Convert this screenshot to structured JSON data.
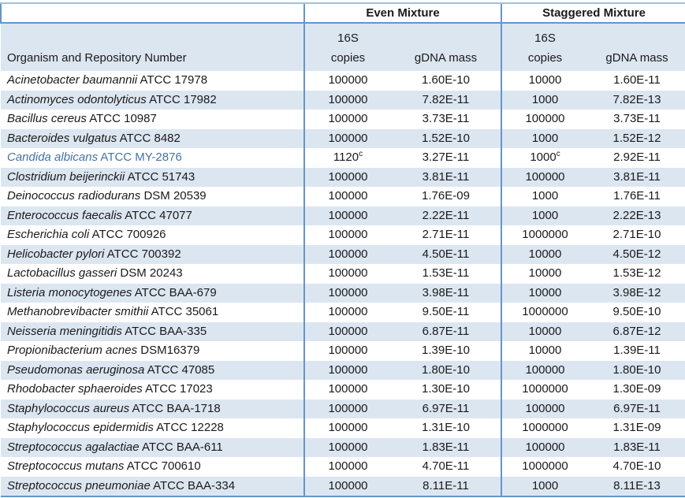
{
  "table": {
    "org_header": "Organism and Repository Number",
    "groups": [
      {
        "label": "Even Mixture"
      },
      {
        "label": "Staggered Mixture"
      }
    ],
    "subheaders": {
      "copies": "16S\ncopies",
      "gdna": "gDNA mass"
    },
    "footnote_marker": "c",
    "colors": {
      "stripe": "#dce6f1",
      "border": "#6496c8",
      "border_top": "#a3c0dd",
      "highlight_text": "#4473a9"
    },
    "rows": [
      {
        "organism": "Acinetobacter baumannii",
        "accession": "ATCC 17978",
        "even_copies": "100000",
        "even_copies_sup": "",
        "even_gdna": "1.60E-10",
        "stag_copies": "10000",
        "stag_copies_sup": "",
        "stag_gdna": "1.60E-11",
        "highlight": false
      },
      {
        "organism": "Actinomyces odontolyticus",
        "accession": "ATCC 17982",
        "even_copies": "100000",
        "even_copies_sup": "",
        "even_gdna": "7.82E-11",
        "stag_copies": "1000",
        "stag_copies_sup": "",
        "stag_gdna": "7.82E-13",
        "highlight": false
      },
      {
        "organism": "Bacillus cereus",
        "accession": "ATCC 10987",
        "even_copies": "100000",
        "even_copies_sup": "",
        "even_gdna": "3.73E-11",
        "stag_copies": "100000",
        "stag_copies_sup": "",
        "stag_gdna": "3.73E-11",
        "highlight": false
      },
      {
        "organism": "Bacteroides vulgatus",
        "accession": "ATCC 8482",
        "even_copies": "100000",
        "even_copies_sup": "",
        "even_gdna": "1.52E-10",
        "stag_copies": "1000",
        "stag_copies_sup": "",
        "stag_gdna": "1.52E-12",
        "highlight": false
      },
      {
        "organism": "Candida albicans",
        "accession": "ATCC MY-2876",
        "even_copies": "1120",
        "even_copies_sup": "c",
        "even_gdna": "3.27E-11",
        "stag_copies": "1000",
        "stag_copies_sup": "c",
        "stag_gdna": "2.92E-11",
        "highlight": true
      },
      {
        "organism": "Clostridium beijerinckii",
        "accession": "ATCC 51743",
        "even_copies": "100000",
        "even_copies_sup": "",
        "even_gdna": "3.81E-11",
        "stag_copies": "100000",
        "stag_copies_sup": "",
        "stag_gdna": "3.81E-11",
        "highlight": false
      },
      {
        "organism": "Deinococcus radiodurans",
        "accession": "DSM 20539",
        "even_copies": "100000",
        "even_copies_sup": "",
        "even_gdna": "1.76E-09",
        "stag_copies": "1000",
        "stag_copies_sup": "",
        "stag_gdna": "1.76E-11",
        "highlight": false
      },
      {
        "organism": "Enterococcus faecalis",
        "accession": "ATCC 47077",
        "even_copies": "100000",
        "even_copies_sup": "",
        "even_gdna": "2.22E-11",
        "stag_copies": "1000",
        "stag_copies_sup": "",
        "stag_gdna": "2.22E-13",
        "highlight": false
      },
      {
        "organism": "Escherichia coli",
        "accession": "ATCC 700926",
        "even_copies": "100000",
        "even_copies_sup": "",
        "even_gdna": "2.71E-11",
        "stag_copies": "1000000",
        "stag_copies_sup": "",
        "stag_gdna": "2.71E-10",
        "highlight": false
      },
      {
        "organism": "Helicobacter pylori",
        "accession": "ATCC 700392",
        "even_copies": "100000",
        "even_copies_sup": "",
        "even_gdna": "4.50E-11",
        "stag_copies": "10000",
        "stag_copies_sup": "",
        "stag_gdna": "4.50E-12",
        "highlight": false
      },
      {
        "organism": "Lactobacillus gasseri",
        "accession": "DSM 20243",
        "even_copies": "100000",
        "even_copies_sup": "",
        "even_gdna": "1.53E-11",
        "stag_copies": "10000",
        "stag_copies_sup": "",
        "stag_gdna": "1.53E-12",
        "highlight": false
      },
      {
        "organism": "Listeria monocytogenes",
        "accession": "ATCC BAA-679",
        "even_copies": "100000",
        "even_copies_sup": "",
        "even_gdna": "3.98E-11",
        "stag_copies": "10000",
        "stag_copies_sup": "",
        "stag_gdna": "3.98E-12",
        "highlight": false
      },
      {
        "organism": "Methanobrevibacter smithii",
        "accession": "ATCC 35061",
        "even_copies": "100000",
        "even_copies_sup": "",
        "even_gdna": "9.50E-11",
        "stag_copies": "1000000",
        "stag_copies_sup": "",
        "stag_gdna": "9.50E-10",
        "highlight": false
      },
      {
        "organism": "Neisseria meningitidis",
        "accession": "ATCC BAA-335",
        "even_copies": "100000",
        "even_copies_sup": "",
        "even_gdna": "6.87E-11",
        "stag_copies": "10000",
        "stag_copies_sup": "",
        "stag_gdna": "6.87E-12",
        "highlight": false
      },
      {
        "organism": "Propionibacterium acnes",
        "accession": "DSM16379",
        "even_copies": "100000",
        "even_copies_sup": "",
        "even_gdna": "1.39E-10",
        "stag_copies": "10000",
        "stag_copies_sup": "",
        "stag_gdna": "1.39E-11",
        "highlight": false
      },
      {
        "organism": "Pseudomonas aeruginosa",
        "accession": "ATCC 47085",
        "even_copies": "100000",
        "even_copies_sup": "",
        "even_gdna": "1.80E-10",
        "stag_copies": "100000",
        "stag_copies_sup": "",
        "stag_gdna": "1.80E-10",
        "highlight": false
      },
      {
        "organism": "Rhodobacter sphaeroides",
        "accession": "ATCC 17023",
        "even_copies": "100000",
        "even_copies_sup": "",
        "even_gdna": "1.30E-10",
        "stag_copies": "1000000",
        "stag_copies_sup": "",
        "stag_gdna": "1.30E-09",
        "highlight": false
      },
      {
        "organism": "Staphylococcus aureus",
        "accession": "ATCC BAA-1718",
        "even_copies": "100000",
        "even_copies_sup": "",
        "even_gdna": "6.97E-11",
        "stag_copies": "100000",
        "stag_copies_sup": "",
        "stag_gdna": "6.97E-11",
        "highlight": false
      },
      {
        "organism": "Staphylococcus epidermidis",
        "accession": "ATCC 12228",
        "even_copies": "100000",
        "even_copies_sup": "",
        "even_gdna": "1.31E-10",
        "stag_copies": "1000000",
        "stag_copies_sup": "",
        "stag_gdna": "1.31E-09",
        "highlight": false
      },
      {
        "organism": "Streptococcus agalactiae",
        "accession": "ATCC BAA-611",
        "even_copies": "100000",
        "even_copies_sup": "",
        "even_gdna": "1.83E-11",
        "stag_copies": "100000",
        "stag_copies_sup": "",
        "stag_gdna": "1.83E-11",
        "highlight": false
      },
      {
        "organism": "Streptococcus mutans",
        "accession": "ATCC 700610",
        "even_copies": "100000",
        "even_copies_sup": "",
        "even_gdna": "4.70E-11",
        "stag_copies": "1000000",
        "stag_copies_sup": "",
        "stag_gdna": "4.70E-10",
        "highlight": false
      },
      {
        "organism": "Streptococcus pneumoniae",
        "accession": "ATCC BAA-334",
        "even_copies": "100000",
        "even_copies_sup": "",
        "even_gdna": "8.11E-11",
        "stag_copies": "1000",
        "stag_copies_sup": "",
        "stag_gdna": "8.11E-13",
        "highlight": false
      }
    ]
  }
}
